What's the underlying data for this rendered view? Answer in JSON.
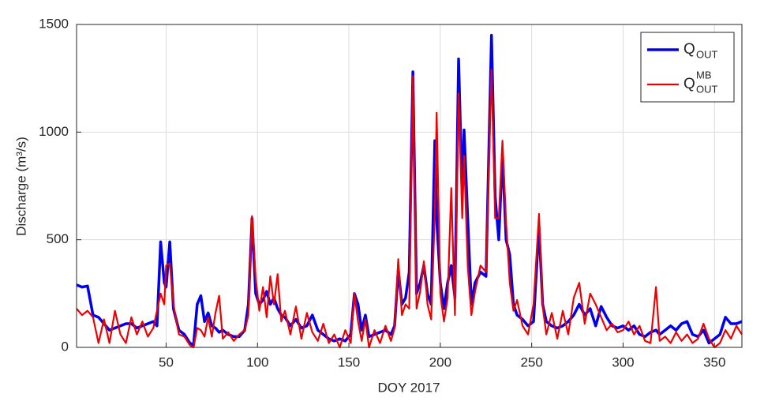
{
  "chart_data": {
    "type": "line",
    "xlabel": "DOY 2017",
    "ylabel": "Discharge (m³/s)",
    "x": [
      1,
      4,
      7,
      10,
      13,
      16,
      19,
      22,
      25,
      28,
      31,
      34,
      37,
      40,
      43,
      45,
      47,
      49,
      50,
      52,
      54,
      57,
      60,
      63,
      65,
      67,
      69,
      71,
      73,
      75,
      77,
      79,
      81,
      84,
      87,
      90,
      93,
      95,
      97,
      99,
      101,
      103,
      105,
      107,
      109,
      111,
      113,
      115,
      118,
      121,
      124,
      127,
      130,
      133,
      136,
      139,
      142,
      145,
      148,
      151,
      153,
      155,
      157,
      159,
      161,
      164,
      167,
      170,
      173,
      175,
      177,
      179,
      181,
      183,
      185,
      187,
      189,
      191,
      193,
      195,
      197,
      198,
      200,
      202,
      204,
      206,
      208,
      210,
      212,
      213,
      215,
      217,
      219,
      222,
      225,
      228,
      230,
      232,
      234,
      236,
      238,
      240,
      242,
      245,
      248,
      251,
      254,
      256,
      258,
      261,
      264,
      267,
      270,
      273,
      276,
      279,
      282,
      285,
      288,
      291,
      294,
      297,
      300,
      303,
      306,
      309,
      312,
      315,
      318,
      320,
      323,
      326,
      329,
      332,
      335,
      338,
      341,
      344,
      347,
      350,
      353,
      356,
      359,
      362,
      365
    ],
    "series": [
      {
        "name": "Q",
        "name_sub": "OUT",
        "color": "#0000ee",
        "values": [
          290,
          280,
          285,
          150,
          140,
          110,
          80,
          90,
          100,
          110,
          110,
          90,
          100,
          110,
          120,
          100,
          490,
          300,
          280,
          490,
          180,
          80,
          60,
          20,
          10,
          200,
          240,
          120,
          160,
          100,
          90,
          70,
          80,
          60,
          50,
          50,
          80,
          200,
          600,
          250,
          200,
          220,
          260,
          200,
          230,
          180,
          150,
          140,
          100,
          130,
          90,
          100,
          150,
          80,
          60,
          40,
          30,
          40,
          30,
          60,
          250,
          200,
          80,
          150,
          50,
          60,
          70,
          80,
          60,
          100,
          360,
          200,
          230,
          350,
          1280,
          250,
          300,
          380,
          250,
          200,
          960,
          600,
          300,
          180,
          300,
          380,
          230,
          1340,
          700,
          1010,
          600,
          200,
          300,
          350,
          330,
          1450,
          700,
          500,
          900,
          500,
          430,
          200,
          150,
          130,
          100,
          120,
          560,
          200,
          120,
          100,
          90,
          100,
          120,
          150,
          200,
          150,
          180,
          100,
          190,
          140,
          100,
          90,
          100,
          80,
          100,
          60,
          50,
          70,
          80,
          60,
          80,
          100,
          80,
          110,
          120,
          60,
          50,
          80,
          20,
          40,
          60,
          140,
          110,
          110,
          120
        ]
      },
      {
        "name": "Q",
        "name_sub": "OUT",
        "name_sup": "MB",
        "color": "#ee0000",
        "values": [
          180,
          150,
          170,
          140,
          20,
          130,
          20,
          170,
          60,
          20,
          140,
          60,
          120,
          50,
          90,
          170,
          250,
          200,
          380,
          390,
          200,
          60,
          50,
          10,
          0,
          90,
          80,
          50,
          140,
          50,
          160,
          240,
          40,
          70,
          30,
          60,
          80,
          150,
          610,
          320,
          170,
          280,
          140,
          330,
          200,
          340,
          120,
          170,
          60,
          190,
          40,
          160,
          70,
          30,
          110,
          20,
          60,
          0,
          80,
          20,
          250,
          120,
          30,
          130,
          0,
          80,
          20,
          100,
          30,
          90,
          410,
          150,
          200,
          180,
          1260,
          180,
          260,
          400,
          200,
          130,
          620,
          1090,
          250,
          120,
          230,
          740,
          150,
          1180,
          600,
          890,
          380,
          150,
          260,
          380,
          350,
          1290,
          600,
          600,
          960,
          580,
          300,
          170,
          220,
          100,
          60,
          200,
          620,
          190,
          60,
          160,
          40,
          170,
          60,
          230,
          300,
          110,
          250,
          200,
          140,
          80,
          110,
          70,
          80,
          120,
          60,
          100,
          30,
          20,
          280,
          30,
          50,
          20,
          70,
          30,
          60,
          20,
          40,
          110,
          40,
          0,
          20,
          80,
          40,
          100,
          60
        ]
      }
    ],
    "xlim": [
      1,
      365
    ],
    "xticks": [
      50,
      100,
      150,
      200,
      250,
      300,
      350
    ],
    "ylim": [
      0,
      1500
    ],
    "yticks": [
      0,
      500,
      1000,
      1500
    ],
    "grid": true,
    "legend": "top-right"
  }
}
